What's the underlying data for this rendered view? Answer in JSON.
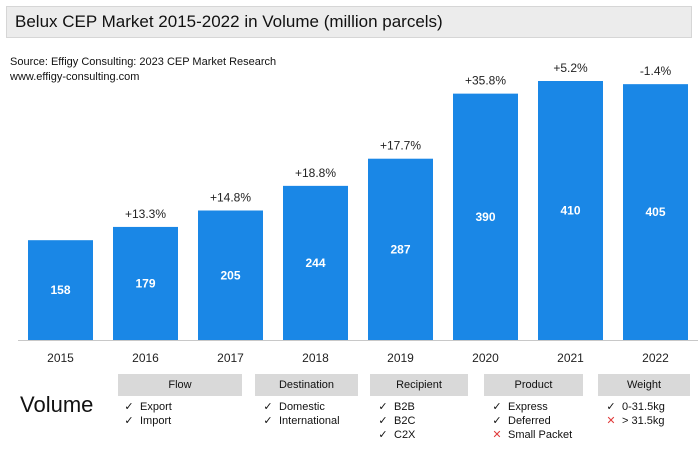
{
  "title": "Belux CEP Market 2015-2022 in Volume (million parcels)",
  "source_line1": "Source: Effigy Consulting: 2023 CEP Market Research",
  "source_line2": "www.effigy-consulting.com",
  "colors": {
    "bar": "#1a87e6",
    "header_bg": "#d9d9d9",
    "title_bg": "#ececec",
    "cross": "#e03b3b"
  },
  "chart_data": {
    "type": "bar",
    "title": "Belux CEP Market 2015-2022 in Volume (million parcels)",
    "categories": [
      "2015",
      "2016",
      "2017",
      "2018",
      "2019",
      "2020",
      "2021",
      "2022"
    ],
    "values": [
      158,
      179,
      205,
      244,
      287,
      390,
      410,
      405
    ],
    "value_labels": [
      "158",
      "179",
      "205",
      "244",
      "287",
      "390",
      "410",
      "405"
    ],
    "growth_labels": [
      "",
      "+13.3%",
      "+14.8%",
      "+18.8%",
      "+17.7%",
      "+35.8%",
      "+5.2%",
      "-1.4%"
    ],
    "xlabel": "",
    "ylabel": "",
    "ylim": [
      0,
      410
    ],
    "grid": false,
    "legend": "none"
  },
  "volume_label": "Volume",
  "categories": [
    {
      "name": "Flow",
      "items": [
        {
          "mark": "check",
          "label": "Export"
        },
        {
          "mark": "check",
          "label": "Import"
        }
      ]
    },
    {
      "name": "Destination",
      "items": [
        {
          "mark": "check",
          "label": "Domestic"
        },
        {
          "mark": "check",
          "label": "International"
        }
      ]
    },
    {
      "name": "Recipient",
      "items": [
        {
          "mark": "check",
          "label": "B2B"
        },
        {
          "mark": "check",
          "label": "B2C"
        },
        {
          "mark": "check",
          "label": "C2X"
        }
      ]
    },
    {
      "name": "Product",
      "items": [
        {
          "mark": "check",
          "label": "Express"
        },
        {
          "mark": "check",
          "label": "Deferred"
        },
        {
          "mark": "cross",
          "label": "Small Packet"
        }
      ]
    },
    {
      "name": "Weight",
      "items": [
        {
          "mark": "check",
          "label": "0-31.5kg"
        },
        {
          "mark": "cross",
          "label": "> 31.5kg"
        }
      ]
    }
  ]
}
